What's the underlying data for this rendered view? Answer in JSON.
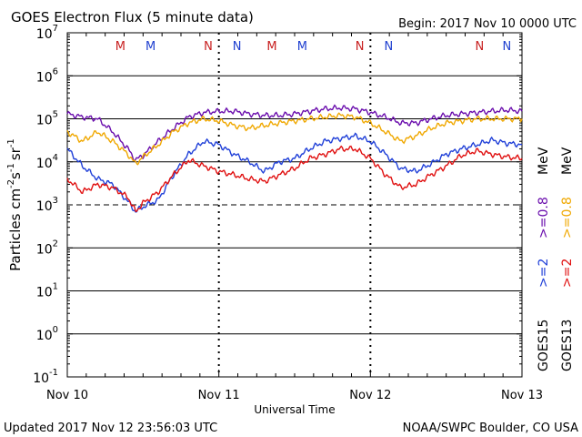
{
  "header": {
    "title": "GOES Electron Flux (5 minute data)",
    "begin": "Begin: 2017 Nov 10 0000 UTC"
  },
  "footer": {
    "updated": "Updated 2017 Nov 12 23:56:03 UTC",
    "credit": "NOAA/SWPC Boulder, CO USA"
  },
  "colors": {
    "purple": "#6a0dad",
    "orange": "#f0a800",
    "blue": "#1f3fd8",
    "red": "#e01010",
    "m_marker": "#c82020",
    "n_marker": "#2040d0"
  },
  "chart_data": {
    "type": "line",
    "y_scale": "log",
    "ylim": [
      0.1,
      10000000
    ],
    "xlim": [
      "2017-11-10 00:00",
      "2017-11-13 00:00"
    ],
    "x_tick_labels": [
      "Nov 10",
      "Nov 11",
      "Nov 12",
      "Nov 13"
    ],
    "y_tick_labels": [
      {
        "base": "10",
        "exp": "-1",
        "value": 0.1
      },
      {
        "base": "10",
        "exp": "0",
        "value": 1
      },
      {
        "base": "10",
        "exp": "1",
        "value": 10
      },
      {
        "base": "10",
        "exp": "2",
        "value": 100
      },
      {
        "base": "10",
        "exp": "3",
        "value": 1000
      },
      {
        "base": "10",
        "exp": "4",
        "value": 10000
      },
      {
        "base": "10",
        "exp": "5",
        "value": 100000
      },
      {
        "base": "10",
        "exp": "6",
        "value": 1000000
      },
      {
        "base": "10",
        "exp": "7",
        "value": 10000000
      }
    ],
    "xlabel": "Universal Time",
    "ylabel": {
      "main": "Particles cm",
      "e1": "-2",
      "mid1": "s",
      "e2": "-1",
      "mid2": "sr",
      "e3": "-1"
    },
    "threshold_level": 1000,
    "grid": "horizontal at decades",
    "legend": {
      "goes15": "GOES15",
      "goes13": "GOES13",
      "goes15_2": ">=2",
      "goes15_08": ">=0.8",
      "goes13_2": ">=2",
      "goes13_08": ">=0.8",
      "unit": "MeV"
    },
    "markers": [
      {
        "label": "M",
        "t": 0.35,
        "color": "m"
      },
      {
        "label": "M",
        "t": 0.55,
        "color": "n"
      },
      {
        "label": "N",
        "t": 0.93,
        "color": "m"
      },
      {
        "label": "N",
        "t": 1.12,
        "color": "n"
      },
      {
        "label": "M",
        "t": 1.35,
        "color": "m"
      },
      {
        "label": "M",
        "t": 1.55,
        "color": "n"
      },
      {
        "label": "N",
        "t": 1.93,
        "color": "m"
      },
      {
        "label": "N",
        "t": 2.12,
        "color": "n"
      },
      {
        "label": "N",
        "t": 2.72,
        "color": "m"
      },
      {
        "label": "N",
        "t": 2.9,
        "color": "n"
      }
    ],
    "series": [
      {
        "name": "GOES15 >=0.8 MeV",
        "color": "purple",
        "points": [
          [
            0.0,
            130000.0
          ],
          [
            0.1,
            110000.0
          ],
          [
            0.2,
            100000.0
          ],
          [
            0.3,
            50000.0
          ],
          [
            0.4,
            20000.0
          ],
          [
            0.45,
            11000.0
          ],
          [
            0.5,
            14000.0
          ],
          [
            0.6,
            30000.0
          ],
          [
            0.7,
            60000.0
          ],
          [
            0.8,
            110000.0
          ],
          [
            0.9,
            140000.0
          ],
          [
            1.0,
            150000.0
          ],
          [
            1.1,
            150000.0
          ],
          [
            1.2,
            130000.0
          ],
          [
            1.3,
            120000.0
          ],
          [
            1.4,
            120000.0
          ],
          [
            1.5,
            130000.0
          ],
          [
            1.6,
            150000.0
          ],
          [
            1.7,
            170000.0
          ],
          [
            1.8,
            180000.0
          ],
          [
            1.9,
            170000.0
          ],
          [
            2.0,
            140000.0
          ],
          [
            2.1,
            110000.0
          ],
          [
            2.2,
            80000.0
          ],
          [
            2.3,
            80000.0
          ],
          [
            2.4,
            100000.0
          ],
          [
            2.5,
            120000.0
          ],
          [
            2.6,
            130000.0
          ],
          [
            2.7,
            140000.0
          ],
          [
            2.8,
            150000.0
          ],
          [
            2.9,
            160000.0
          ],
          [
            3.0,
            150000.0
          ]
        ]
      },
      {
        "name": "GOES13 >=0.8 MeV",
        "color": "orange",
        "points": [
          [
            0.0,
            50000.0
          ],
          [
            0.1,
            30000.0
          ],
          [
            0.2,
            50000.0
          ],
          [
            0.3,
            30000.0
          ],
          [
            0.4,
            15000.0
          ],
          [
            0.45,
            9000.0
          ],
          [
            0.5,
            13000.0
          ],
          [
            0.6,
            25000.0
          ],
          [
            0.7,
            50000.0
          ],
          [
            0.8,
            80000.0
          ],
          [
            0.9,
            100000.0
          ],
          [
            1.0,
            90000.0
          ],
          [
            1.1,
            70000.0
          ],
          [
            1.2,
            60000.0
          ],
          [
            1.3,
            70000.0
          ],
          [
            1.4,
            80000.0
          ],
          [
            1.5,
            90000.0
          ],
          [
            1.6,
            100000.0
          ],
          [
            1.7,
            110000.0
          ],
          [
            1.8,
            120000.0
          ],
          [
            1.9,
            110000.0
          ],
          [
            2.0,
            80000.0
          ],
          [
            2.1,
            50000.0
          ],
          [
            2.2,
            30000.0
          ],
          [
            2.3,
            40000.0
          ],
          [
            2.4,
            60000.0
          ],
          [
            2.5,
            80000.0
          ],
          [
            2.6,
            90000.0
          ],
          [
            2.7,
            100000.0
          ],
          [
            2.8,
            100000.0
          ],
          [
            2.9,
            100000.0
          ],
          [
            3.0,
            100000.0
          ]
        ]
      },
      {
        "name": "GOES15 >=2 MeV",
        "color": "blue",
        "points": [
          [
            0.0,
            20000.0
          ],
          [
            0.1,
            8000.0
          ],
          [
            0.2,
            4000.0
          ],
          [
            0.3,
            3000.0
          ],
          [
            0.4,
            1200.0
          ],
          [
            0.45,
            700
          ],
          [
            0.5,
            900
          ],
          [
            0.6,
            1300.0
          ],
          [
            0.7,
            5000.0
          ],
          [
            0.8,
            15000.0
          ],
          [
            0.9,
            30000.0
          ],
          [
            1.0,
            25000.0
          ],
          [
            1.1,
            15000.0
          ],
          [
            1.2,
            10000.0
          ],
          [
            1.3,
            6000.0
          ],
          [
            1.4,
            10000.0
          ],
          [
            1.5,
            12000.0
          ],
          [
            1.6,
            20000.0
          ],
          [
            1.7,
            30000.0
          ],
          [
            1.8,
            35000.0
          ],
          [
            1.9,
            40000.0
          ],
          [
            2.0,
            30000.0
          ],
          [
            2.1,
            15000.0
          ],
          [
            2.2,
            7000.0
          ],
          [
            2.3,
            6000.0
          ],
          [
            2.4,
            9000.0
          ],
          [
            2.5,
            15000.0
          ],
          [
            2.6,
            20000.0
          ],
          [
            2.7,
            25000.0
          ],
          [
            2.8,
            32000.0
          ],
          [
            2.9,
            27000.0
          ],
          [
            3.0,
            25000.0
          ]
        ]
      },
      {
        "name": "GOES13 >=2 MeV",
        "color": "red",
        "points": [
          [
            0.0,
            4000.0
          ],
          [
            0.1,
            2000.0
          ],
          [
            0.2,
            3000.0
          ],
          [
            0.3,
            2500.0
          ],
          [
            0.4,
            1500.0
          ],
          [
            0.45,
            700
          ],
          [
            0.5,
            1100.0
          ],
          [
            0.6,
            2000.0
          ],
          [
            0.7,
            5000.0
          ],
          [
            0.8,
            11000.0
          ],
          [
            0.9,
            8000.0
          ],
          [
            1.0,
            6000.0
          ],
          [
            1.1,
            5000.0
          ],
          [
            1.2,
            4000.0
          ],
          [
            1.3,
            3500.0
          ],
          [
            1.4,
            5000.0
          ],
          [
            1.5,
            7000.0
          ],
          [
            1.6,
            12000.0
          ],
          [
            1.7,
            15000.0
          ],
          [
            1.8,
            20000.0
          ],
          [
            1.9,
            20000.0
          ],
          [
            2.0,
            12000.0
          ],
          [
            2.1,
            5000.0
          ],
          [
            2.2,
            2500.0
          ],
          [
            2.3,
            3000.0
          ],
          [
            2.4,
            5000.0
          ],
          [
            2.5,
            8000.0
          ],
          [
            2.6,
            14000.0
          ],
          [
            2.7,
            18000.0
          ],
          [
            2.8,
            15000.0
          ],
          [
            2.9,
            13000.0
          ],
          [
            3.0,
            12000.0
          ]
        ]
      }
    ]
  }
}
